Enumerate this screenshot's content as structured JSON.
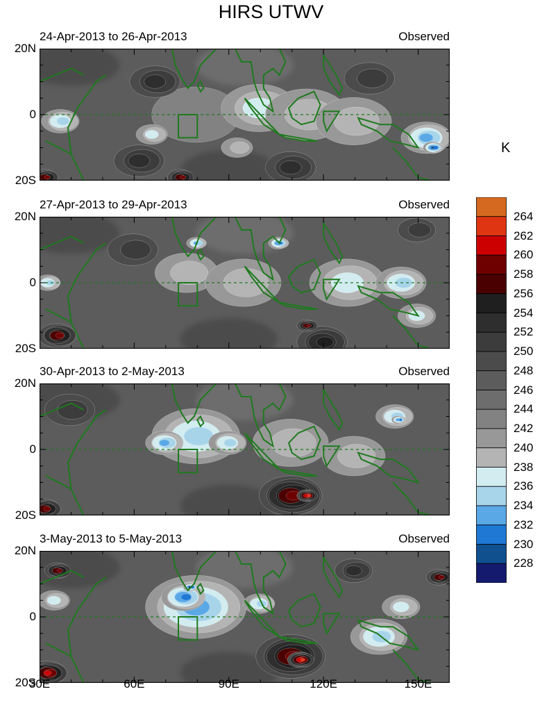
{
  "title": "HIRS UTWV",
  "colorbar": {
    "units": "K",
    "labels": [
      "264",
      "262",
      "260",
      "258",
      "256",
      "254",
      "252",
      "250",
      "248",
      "246",
      "244",
      "242",
      "240",
      "238",
      "236",
      "234",
      "232",
      "230",
      "228"
    ],
    "colors": [
      "#d4691f",
      "#e03512",
      "#cc0000",
      "#6e0000",
      "#4a0000",
      "#1f1f1f",
      "#2e2e2e",
      "#3c3c3c",
      "#4b4b4b",
      "#5c5c5c",
      "#6d6d6d",
      "#828282",
      "#989898",
      "#b4b4b4",
      "#d2ecf0",
      "#a8d4ea",
      "#5aa8e6",
      "#1e78d4",
      "#10508f",
      "#141a6e"
    ]
  },
  "chart_data": {
    "type": "heatmap",
    "variable": "HIRS UTWV",
    "units": "K",
    "xlim": [
      30,
      160
    ],
    "ylim": [
      -20,
      20
    ],
    "x_ticks": [
      "30E",
      "60E",
      "90E",
      "120E",
      "150E"
    ],
    "x_tick_values": [
      30,
      60,
      90,
      120,
      150
    ],
    "y_ticks": [
      "20N",
      "0",
      "20S"
    ],
    "y_tick_values": [
      20,
      0,
      -20
    ],
    "contour_levels": [
      228,
      230,
      232,
      234,
      236,
      238,
      240,
      242,
      244,
      246,
      248,
      250,
      252,
      254,
      256,
      258,
      260,
      262,
      264
    ],
    "box": {
      "lon": [
        74,
        80
      ],
      "lat": [
        -7,
        0
      ]
    },
    "panels": [
      {
        "title": "24-Apr-2013 to 26-Apr-2013",
        "tag": "Observed",
        "features": [
          {
            "lon": 80,
            "lat": 0,
            "value": 243,
            "r": 14
          },
          {
            "lon": 100,
            "lat": 2,
            "value": 236,
            "r": 12
          },
          {
            "lon": 115,
            "lat": 0,
            "value": 237,
            "r": 13
          },
          {
            "lon": 130,
            "lat": -2,
            "value": 237,
            "r": 12
          },
          {
            "lon": 153,
            "lat": -7,
            "value": 231,
            "r": 8
          },
          {
            "lon": 155,
            "lat": -10,
            "value": 228,
            "r": 3
          },
          {
            "lon": 37,
            "lat": -2,
            "value": 234,
            "r": 6
          },
          {
            "lon": 66,
            "lat": -6,
            "value": 236,
            "r": 5
          },
          {
            "lon": 93,
            "lat": -10,
            "value": 237,
            "r": 5
          },
          {
            "lon": 67,
            "lat": 10,
            "value": 253,
            "r": 8
          },
          {
            "lon": 62,
            "lat": -14,
            "value": 252,
            "r": 8
          },
          {
            "lon": 110,
            "lat": -16,
            "value": 252,
            "r": 8
          },
          {
            "lon": 135,
            "lat": 11,
            "value": 250,
            "r": 8
          },
          {
            "lon": 75,
            "lat": -19,
            "value": 258,
            "r": 4
          },
          {
            "lon": 32,
            "lat": -19,
            "value": 258,
            "r": 4
          }
        ]
      },
      {
        "title": "27-Apr-2013 to 29-Apr-2013",
        "tag": "Observed",
        "features": [
          {
            "lon": 77,
            "lat": 3,
            "value": 237,
            "r": 10
          },
          {
            "lon": 95,
            "lat": 0,
            "value": 238,
            "r": 12
          },
          {
            "lon": 128,
            "lat": 0,
            "value": 236,
            "r": 12
          },
          {
            "lon": 145,
            "lat": 0,
            "value": 233,
            "r": 8
          },
          {
            "lon": 150,
            "lat": -10,
            "value": 235,
            "r": 6
          },
          {
            "lon": 80,
            "lat": 12,
            "value": 231,
            "r": 3
          },
          {
            "lon": 106,
            "lat": 12,
            "value": 230,
            "r": 3
          },
          {
            "lon": 33,
            "lat": 0,
            "value": 234,
            "r": 4
          },
          {
            "lon": 120,
            "lat": -18,
            "value": 255,
            "r": 8
          },
          {
            "lon": 60,
            "lat": 10,
            "value": 250,
            "r": 8
          },
          {
            "lon": 150,
            "lat": 16,
            "value": 250,
            "r": 6
          },
          {
            "lon": 36,
            "lat": -16,
            "value": 258,
            "r": 6
          },
          {
            "lon": 115,
            "lat": -13,
            "value": 258,
            "r": 3
          }
        ]
      },
      {
        "title": "30-Apr-2013 to 2-May-2013",
        "tag": "Observed",
        "features": [
          {
            "lon": 80,
            "lat": 4,
            "value": 234,
            "r": 14
          },
          {
            "lon": 70,
            "lat": 2,
            "value": 232,
            "r": 6
          },
          {
            "lon": 90,
            "lat": 2,
            "value": 233,
            "r": 6
          },
          {
            "lon": 110,
            "lat": 2,
            "value": 237,
            "r": 12
          },
          {
            "lon": 143,
            "lat": 10,
            "value": 233,
            "r": 6
          },
          {
            "lon": 144,
            "lat": 9,
            "value": 230,
            "r": 2
          },
          {
            "lon": 130,
            "lat": -2,
            "value": 238,
            "r": 10
          },
          {
            "lon": 110,
            "lat": -14,
            "value": 258,
            "r": 10
          },
          {
            "lon": 115,
            "lat": -14,
            "value": 262,
            "r": 3
          },
          {
            "lon": 32,
            "lat": -18,
            "value": 258,
            "r": 5
          },
          {
            "lon": 40,
            "lat": 12,
            "value": 250,
            "r": 8
          }
        ]
      },
      {
        "title": "3-May-2013 to 5-May-2013",
        "tag": "Observed",
        "features": [
          {
            "lon": 80,
            "lat": 3,
            "value": 232,
            "r": 16
          },
          {
            "lon": 76,
            "lat": 6,
            "value": 230,
            "r": 7
          },
          {
            "lon": 78,
            "lat": 9,
            "value": 228,
            "r": 2
          },
          {
            "lon": 100,
            "lat": 4,
            "value": 234,
            "r": 5
          },
          {
            "lon": 138,
            "lat": -6,
            "value": 233,
            "r": 9
          },
          {
            "lon": 145,
            "lat": 3,
            "value": 236,
            "r": 6
          },
          {
            "lon": 35,
            "lat": 5,
            "value": 235,
            "r": 5
          },
          {
            "lon": 110,
            "lat": -12,
            "value": 258,
            "r": 11
          },
          {
            "lon": 113,
            "lat": -13,
            "value": 262,
            "r": 4
          },
          {
            "lon": 33,
            "lat": -17,
            "value": 260,
            "r": 6
          },
          {
            "lon": 36,
            "lat": 14,
            "value": 258,
            "r": 4
          },
          {
            "lon": 157,
            "lat": 12,
            "value": 258,
            "r": 4
          },
          {
            "lon": 130,
            "lat": 14,
            "value": 252,
            "r": 6
          }
        ]
      }
    ]
  }
}
